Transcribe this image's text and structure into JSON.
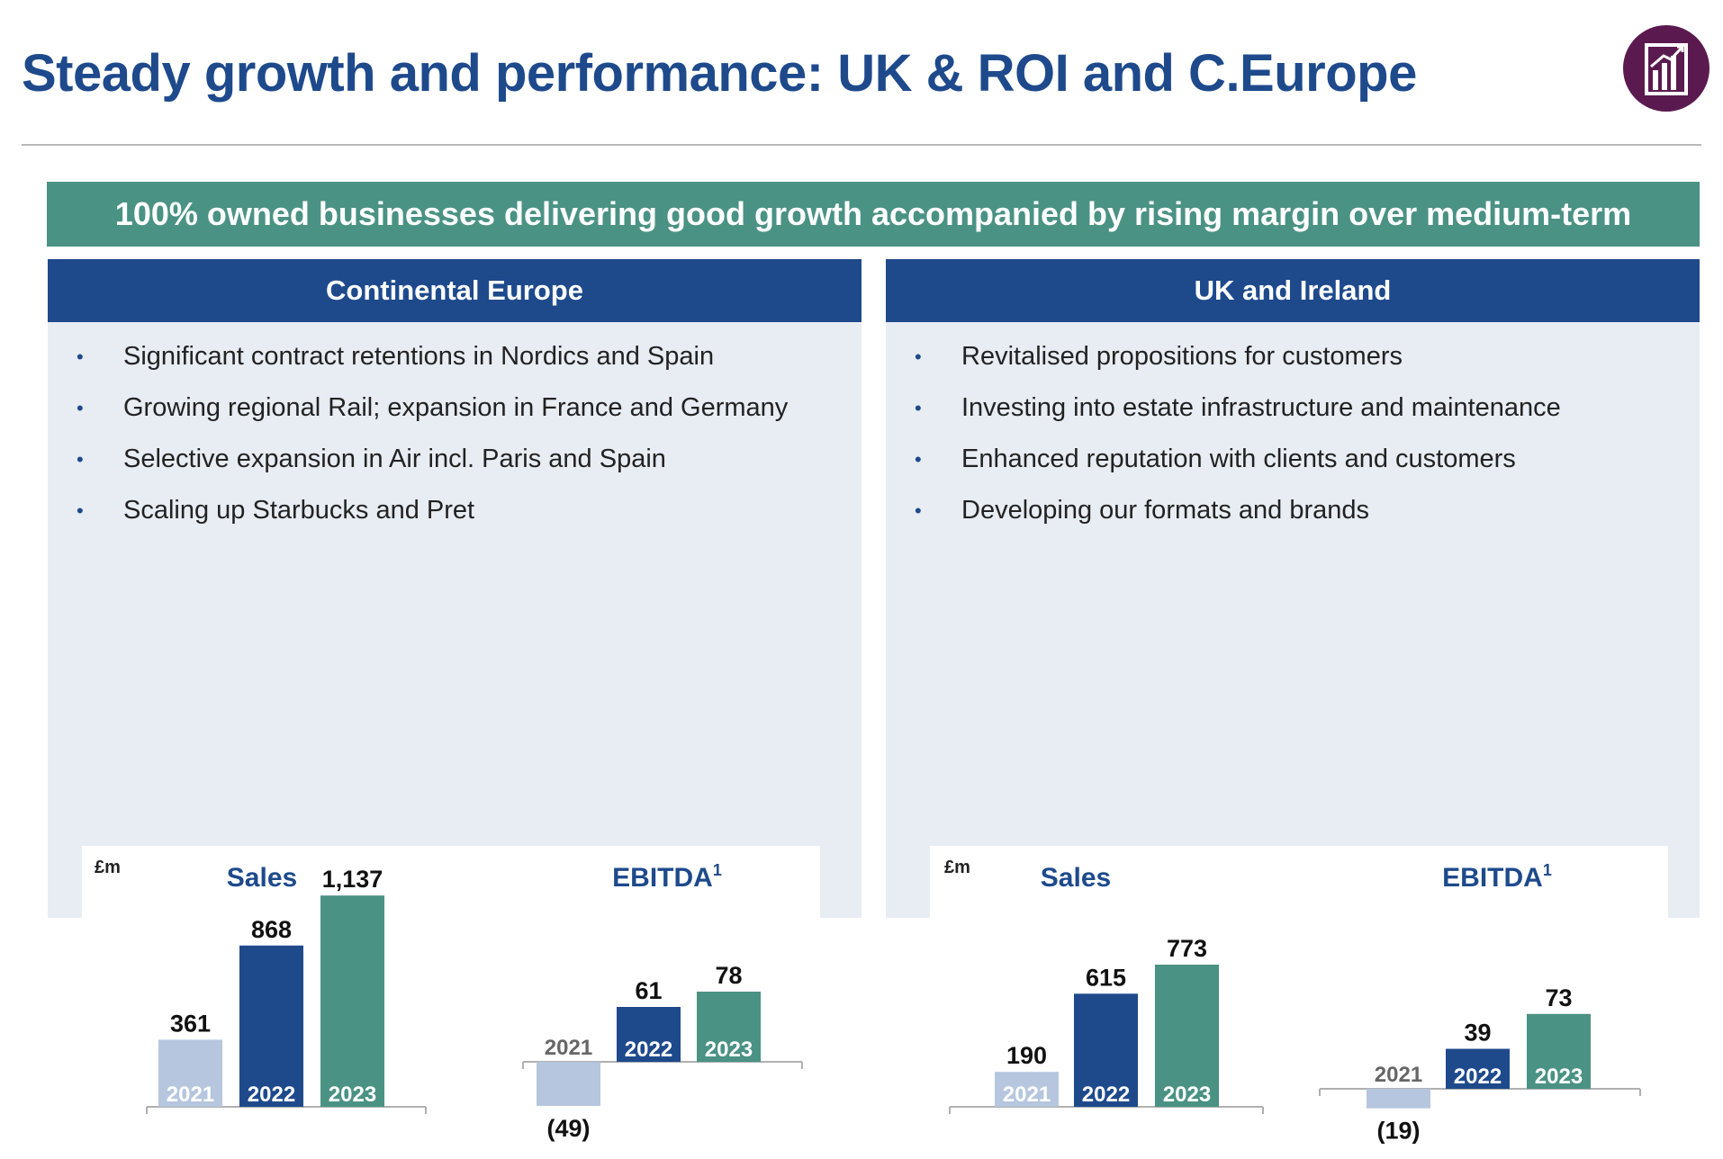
{
  "title": "Steady growth and performance: UK & ROI and C.Europe",
  "logo_icon": "bar-chart-growth-icon",
  "banner": "100% owned businesses delivering good growth accompanied by rising margin over medium-term",
  "colors": {
    "navy": "#1e4a8c",
    "teal": "#4a9284",
    "light": "#b5c6de",
    "panel": "#e8edf4"
  },
  "panels": [
    {
      "heading": "Continental Europe",
      "bullets": [
        "Significant contract retentions in Nordics and Spain",
        "Growing regional Rail; expansion in France and Germany",
        "Selective expansion in Air incl. Paris and Spain",
        "Scaling up Starbucks and Pret"
      ]
    },
    {
      "heading": "UK and Ireland",
      "bullets": [
        "Revitalised propositions for customers",
        "Investing into estate infrastructure and maintenance",
        "Enhanced reputation with clients and customers",
        "Developing our formats and brands"
      ]
    }
  ],
  "chart_data": [
    {
      "type": "bar",
      "unit": "£m",
      "title": "Sales",
      "categories": [
        "2021",
        "2022",
        "2023"
      ],
      "values": [
        361,
        868,
        1137
      ],
      "labels": [
        "361",
        "868",
        "1,137"
      ]
    },
    {
      "type": "bar",
      "title": "EBITDA",
      "title_sup": "1",
      "categories": [
        "2021",
        "2022",
        "2023"
      ],
      "values": [
        -49,
        61,
        78
      ],
      "labels": [
        "(49)",
        "61",
        "78"
      ]
    },
    {
      "type": "bar",
      "unit": "£m",
      "title": "Sales",
      "categories": [
        "2021",
        "2022",
        "2023"
      ],
      "values": [
        190,
        615,
        773
      ],
      "labels": [
        "190",
        "615",
        "773"
      ]
    },
    {
      "type": "bar",
      "title": "EBITDA",
      "title_sup": "1",
      "categories": [
        "2021",
        "2022",
        "2023"
      ],
      "values": [
        -19,
        39,
        73
      ],
      "labels": [
        "(19)",
        "39",
        "73"
      ]
    }
  ]
}
